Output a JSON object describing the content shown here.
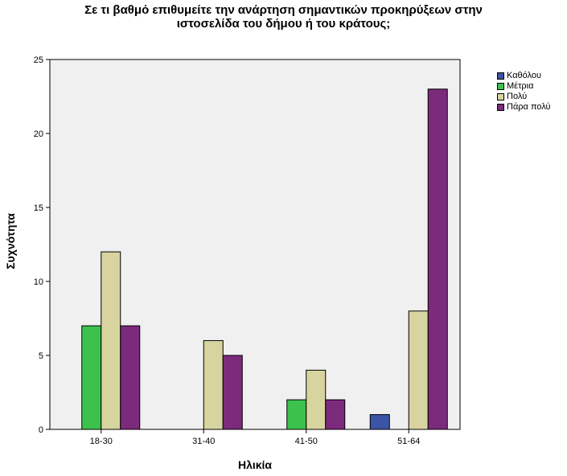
{
  "chart_data": {
    "type": "bar",
    "title_lines": [
      "Σε τι βαθμό επιθυμείτε την ανάρτηση σημαντικών προκηρύξεων στην",
      "ιστοσελίδα του δήμου ή του κράτους;"
    ],
    "xlabel": "Ηλικία",
    "ylabel": "Συχνότητα",
    "categories": [
      "18-30",
      "31-40",
      "41-50",
      "51-64"
    ],
    "ylim": [
      0,
      25
    ],
    "yticks": [
      0,
      5,
      10,
      15,
      20,
      25
    ],
    "series": [
      {
        "name": "Καθόλου",
        "color": "#3b54a4",
        "values": [
          0,
          0,
          0,
          1
        ]
      },
      {
        "name": "Μέτρια",
        "color": "#3cc24c",
        "values": [
          7,
          0,
          2,
          0
        ]
      },
      {
        "name": "Πολύ",
        "color": "#d8d4a0",
        "values": [
          12,
          6,
          4,
          8
        ]
      },
      {
        "name": "Πάρα πολύ",
        "color": "#7c2a7c",
        "values": [
          7,
          5,
          2,
          23
        ]
      }
    ],
    "legend_position": "right",
    "grid": false,
    "plot_background": "#f0f0f0"
  }
}
